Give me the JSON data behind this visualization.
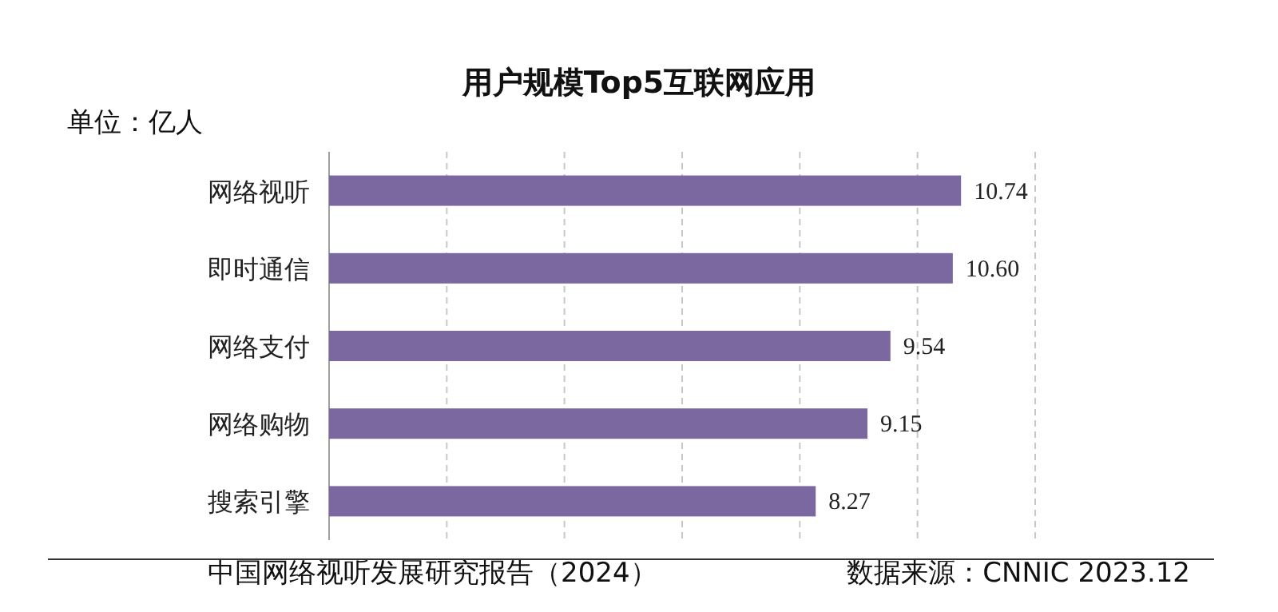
{
  "chart_data": {
    "type": "bar",
    "orientation": "horizontal",
    "title": "用户规模Top5互联网应用",
    "categories": [
      "网络视听",
      "即时通信",
      "网络支付",
      "网络购物",
      "搜索引擎"
    ],
    "values": [
      10.74,
      10.6,
      9.54,
      9.15,
      8.27
    ],
    "value_labels": [
      "10.74",
      "10.60",
      "9.54",
      "9.15",
      "8.27"
    ],
    "color": "#7b68a0",
    "xlim": [
      0,
      12
    ],
    "xticks": [
      {
        "value": 0,
        "label": null
      },
      {
        "value": 2,
        "label": null
      },
      {
        "value": 4,
        "label": null
      },
      {
        "value": 6,
        "label": null
      },
      {
        "value": 8,
        "label": null
      },
      {
        "value": 10,
        "label": null
      },
      {
        "value": 12,
        "label": null
      }
    ],
    "grid": "x",
    "tick_labels": "y",
    "annotations": [
      "单位：亿人",
      "中国网络视听发展研究报告（2024）",
      "数据来源：CNNIC   2023.12"
    ]
  }
}
